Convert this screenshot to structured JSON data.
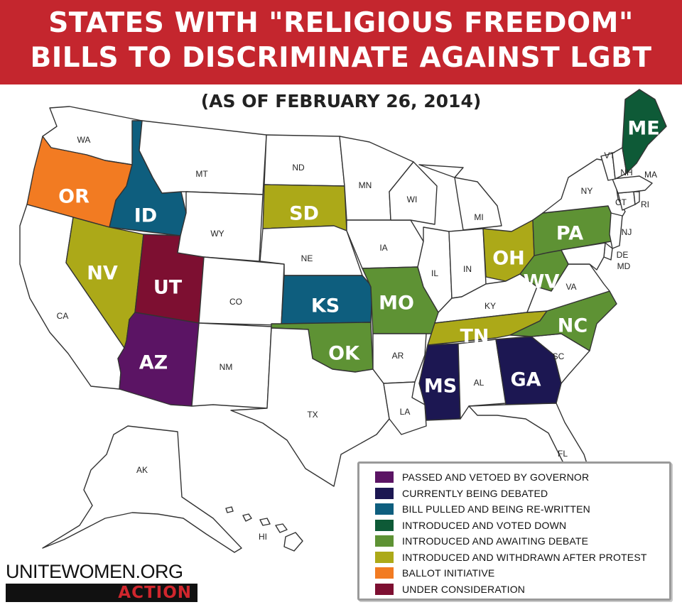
{
  "title": {
    "line1": "STATES WITH \"RELIGIOUS FREEDOM\"",
    "line2": "BILLS TO DISCRIMINATE AGAINST LGBT"
  },
  "subtitle": "(AS OF FEBRUARY 26, 2014)",
  "colors": {
    "banner": "#c4262e",
    "passed_vetoed": "#5b1464",
    "being_debated": "#1c1752",
    "pulled_rewritten": "#0e5e7e",
    "voted_down": "#0e5a37",
    "awaiting_debate": "#5e9234",
    "withdrawn": "#aca918",
    "ballot": "#f27b22",
    "under_consideration": "#7d0f31",
    "none": "#ffffff"
  },
  "legend": [
    {
      "key": "passed_vetoed",
      "label": "PASSED AND VETOED BY GOVERNOR"
    },
    {
      "key": "being_debated",
      "label": "CURRENTLY BEING DEBATED"
    },
    {
      "key": "pulled_rewritten",
      "label": "BILL PULLED AND BEING RE-WRITTEN"
    },
    {
      "key": "voted_down",
      "label": "INTRODUCED AND VOTED DOWN"
    },
    {
      "key": "awaiting_debate",
      "label": "INTRODUCED AND AWAITING DEBATE"
    },
    {
      "key": "withdrawn",
      "label": "INTRODUCED AND WITHDRAWN AFTER PROTEST"
    },
    {
      "key": "ballot",
      "label": "BALLOT INITIATIVE"
    },
    {
      "key": "under_consideration",
      "label": "UNDER CONSIDERATION"
    }
  ],
  "states": {
    "WA": {
      "status": "none"
    },
    "OR": {
      "status": "ballot"
    },
    "CA": {
      "status": "none"
    },
    "ID": {
      "status": "pulled_rewritten"
    },
    "NV": {
      "status": "withdrawn"
    },
    "UT": {
      "status": "under_consideration"
    },
    "AZ": {
      "status": "passed_vetoed"
    },
    "MT": {
      "status": "none"
    },
    "WY": {
      "status": "none"
    },
    "CO": {
      "status": "none"
    },
    "NM": {
      "status": "none"
    },
    "ND": {
      "status": "none"
    },
    "SD": {
      "status": "withdrawn"
    },
    "NE": {
      "status": "none"
    },
    "KS": {
      "status": "pulled_rewritten"
    },
    "OK": {
      "status": "awaiting_debate"
    },
    "TX": {
      "status": "none"
    },
    "MN": {
      "status": "none"
    },
    "IA": {
      "status": "none"
    },
    "MO": {
      "status": "awaiting_debate"
    },
    "AR": {
      "status": "none"
    },
    "LA": {
      "status": "none"
    },
    "WI": {
      "status": "none"
    },
    "IL": {
      "status": "none"
    },
    "MI": {
      "status": "none"
    },
    "IN": {
      "status": "none"
    },
    "OH": {
      "status": "withdrawn"
    },
    "KY": {
      "status": "none"
    },
    "TN": {
      "status": "withdrawn"
    },
    "MS": {
      "status": "being_debated"
    },
    "AL": {
      "status": "none"
    },
    "GA": {
      "status": "being_debated"
    },
    "FL": {
      "status": "none"
    },
    "SC": {
      "status": "none"
    },
    "NC": {
      "status": "awaiting_debate"
    },
    "VA": {
      "status": "none"
    },
    "WV": {
      "status": "awaiting_debate"
    },
    "PA": {
      "status": "awaiting_debate"
    },
    "NY": {
      "status": "none"
    },
    "NJ": {
      "status": "none"
    },
    "DE": {
      "status": "none"
    },
    "MD": {
      "status": "none"
    },
    "CT": {
      "status": "none"
    },
    "RI": {
      "status": "none"
    },
    "MA": {
      "status": "none"
    },
    "VT": {
      "status": "none"
    },
    "NH": {
      "status": "none"
    },
    "ME": {
      "status": "voted_down"
    },
    "AK": {
      "status": "none"
    },
    "HI": {
      "status": "none"
    }
  },
  "labels": {
    "WA": "WA",
    "OR": "OR",
    "CA": "CA",
    "ID": "ID",
    "NV": "NV",
    "UT": "UT",
    "AZ": "AZ",
    "MT": "MT",
    "WY": "WY",
    "CO": "CO",
    "NM": "NM",
    "ND": "ND",
    "SD": "SD",
    "NE": "NE",
    "KS": "KS",
    "OK": "OK",
    "TX": "TX",
    "MN": "MN",
    "IA": "IA",
    "MO": "MO",
    "AR": "AR",
    "LA": "LA",
    "WI": "WI",
    "IL": "IL",
    "MI": "MI",
    "IN": "IN",
    "OH": "OH",
    "KY": "KY",
    "TN": "TN",
    "MS": "MS",
    "AL": "AL",
    "GA": "GA",
    "FL": "FL",
    "SC": "SC",
    "NC": "NC",
    "VA": "VA",
    "WV": "WV",
    "PA": "PA",
    "NY": "NY",
    "NJ": "NJ",
    "DE": "DE",
    "MD": "MD",
    "CT": "CT",
    "RI": "RI",
    "MA": "MA",
    "VT": "VT",
    "NH": "NH",
    "ME": "ME",
    "AK": "AK",
    "HI": "HI"
  },
  "brand": {
    "name": "UNITEWOMEN.ORG",
    "action": "ACTION"
  }
}
